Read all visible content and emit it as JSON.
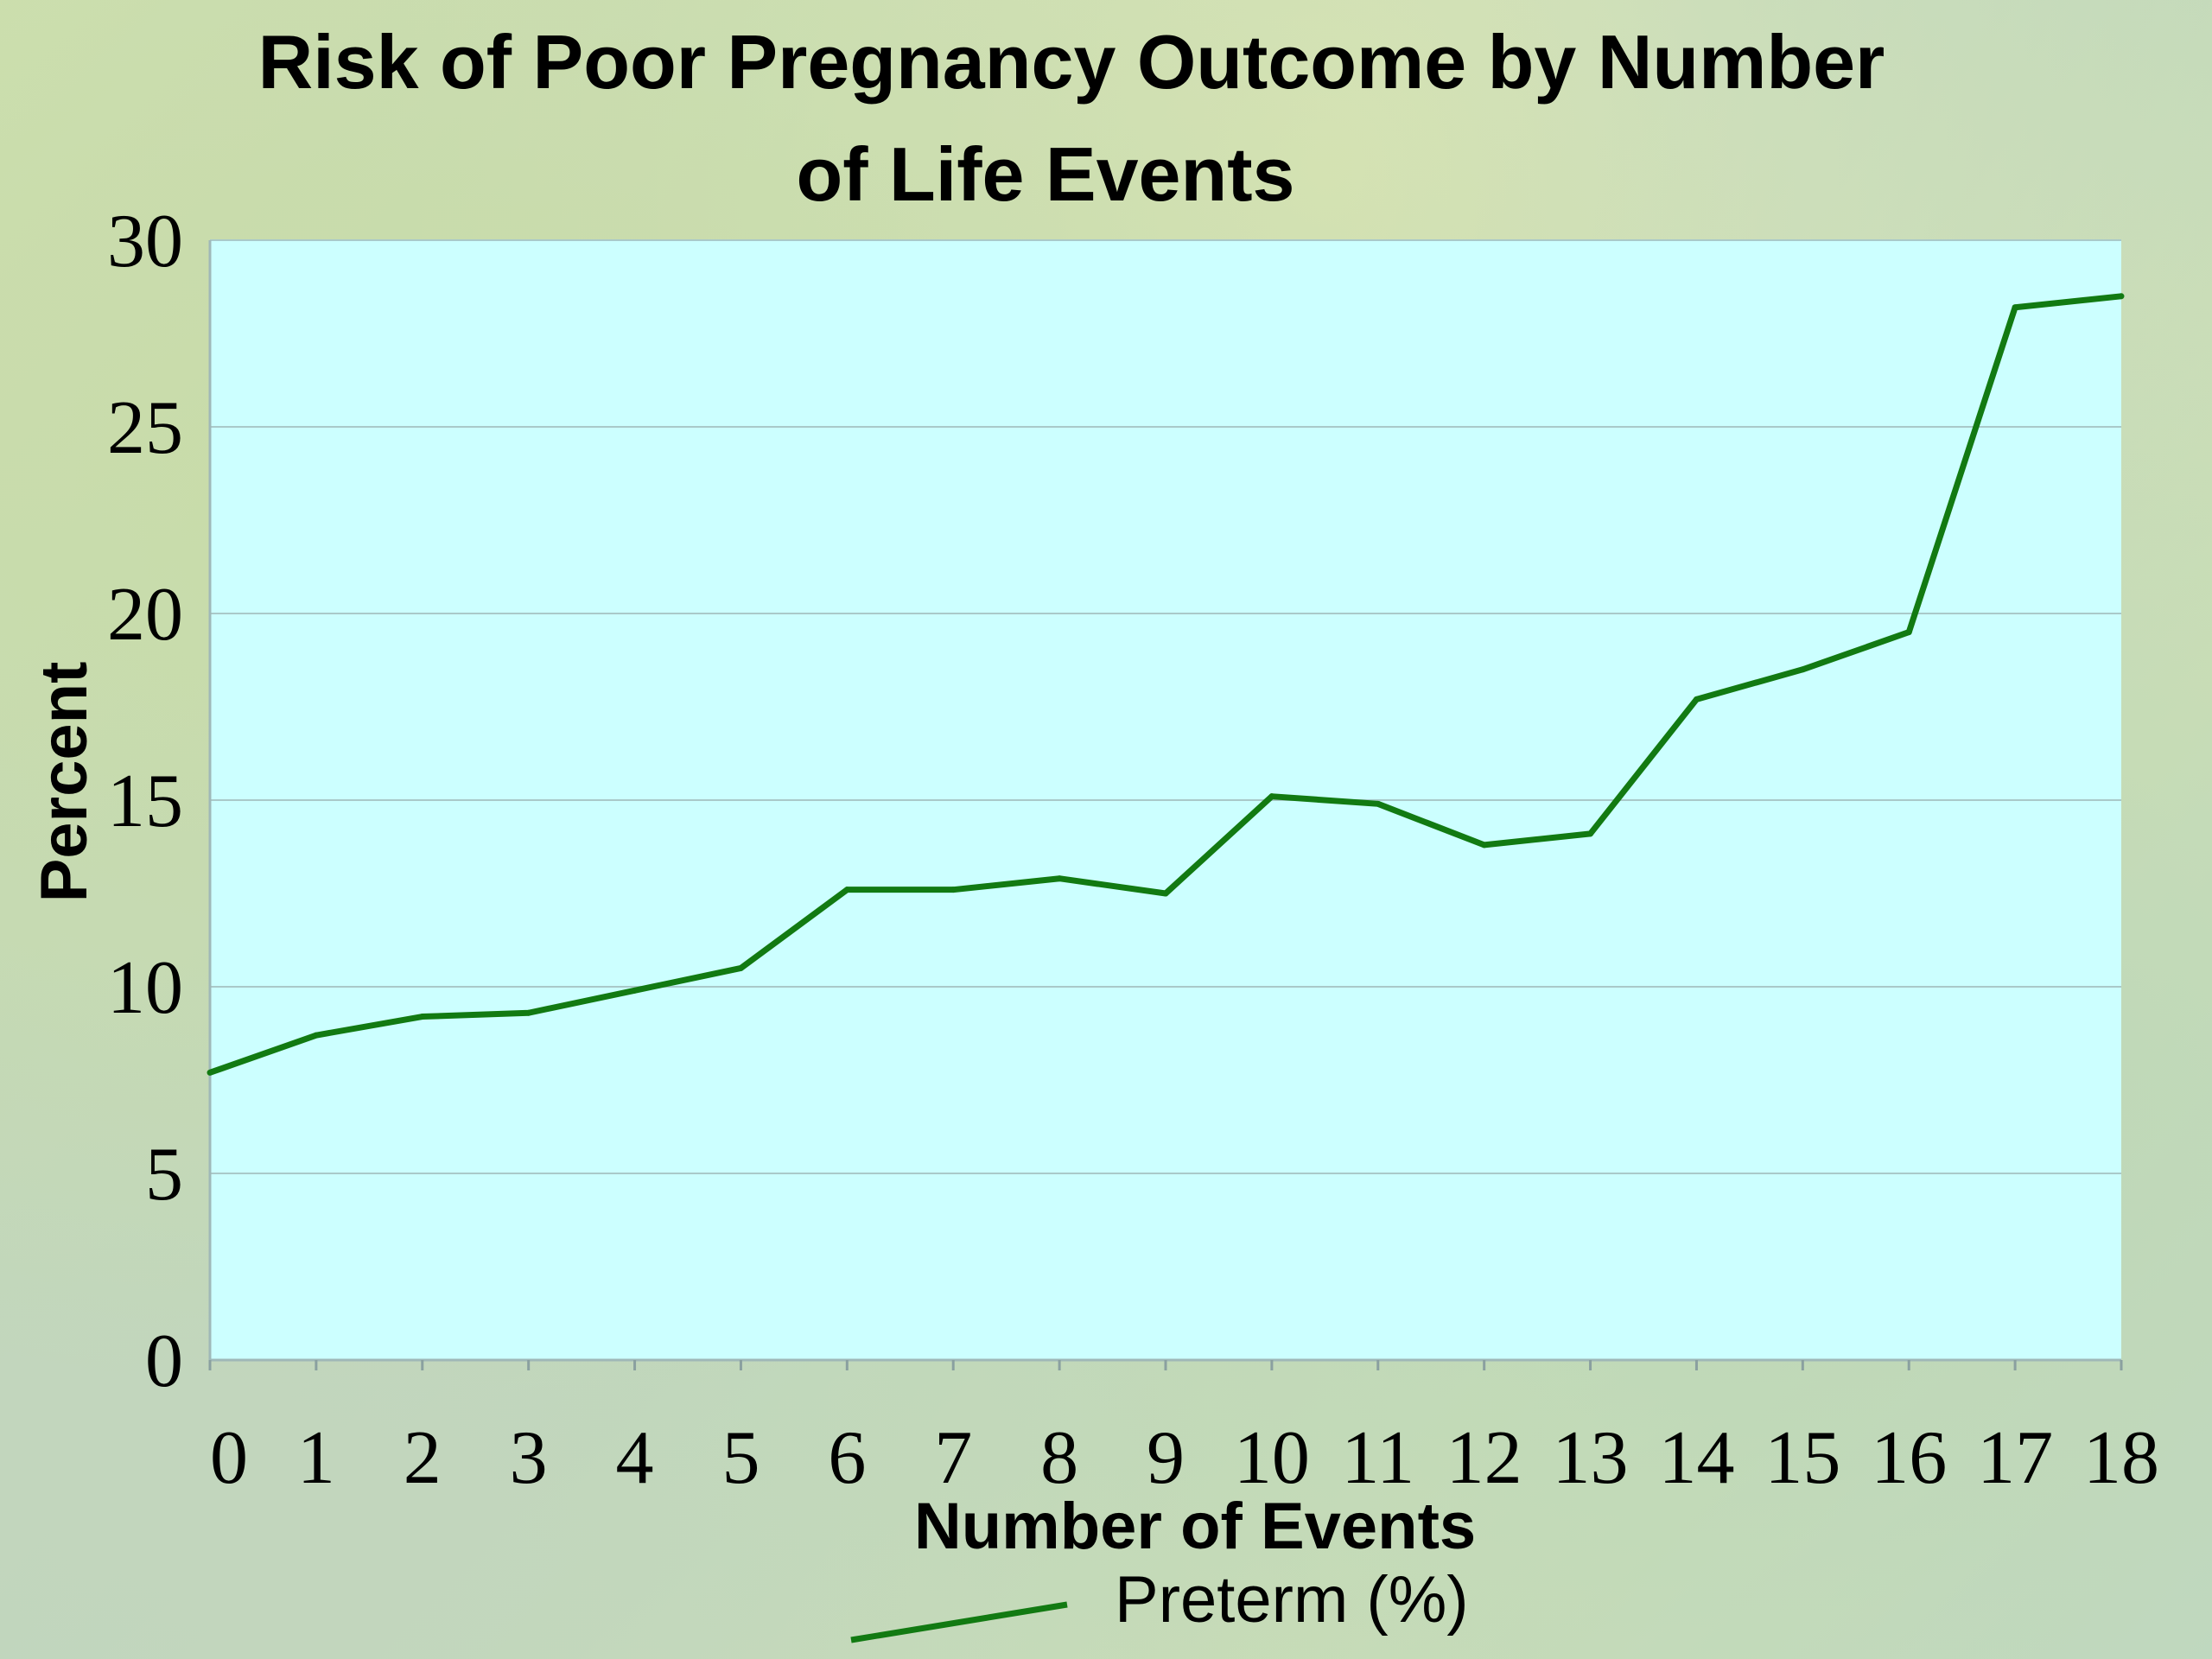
{
  "chart_data": {
    "type": "line",
    "title_lines": [
      "Risk of Poor Pregnancy Outcome by Number",
      "of Life Events"
    ],
    "xlabel": "Number of Events",
    "ylabel": "Percent",
    "x": [
      0,
      1,
      2,
      3,
      4,
      5,
      6,
      7,
      8,
      9,
      10,
      11,
      12,
      13,
      14,
      15,
      16,
      17,
      18
    ],
    "x_tick_labels": [
      "0",
      "1",
      "2",
      "3",
      "4",
      "5",
      "6",
      "7",
      "8",
      "9",
      "10",
      "11",
      "12",
      "13",
      "14",
      "15",
      "16",
      "17",
      "18"
    ],
    "y_ticks": [
      0,
      5,
      10,
      15,
      20,
      25,
      30
    ],
    "y_tick_labels": [
      "0",
      "5",
      "10",
      "15",
      "20",
      "25",
      "30"
    ],
    "ylim": [
      0,
      30
    ],
    "grid": "horizontal",
    "legend_position": "bottom",
    "series": [
      {
        "name": "Preterm (%)",
        "color": "#127a12",
        "values": [
          7.7,
          8.7,
          9.2,
          9.3,
          9.9,
          10.5,
          12.6,
          12.6,
          12.9,
          12.5,
          15.1,
          14.9,
          13.8,
          14.1,
          17.7,
          18.5,
          19.5,
          28.2,
          28.5
        ]
      }
    ],
    "plot_background": "#ccffff",
    "gridline_color": "#a9c9c9"
  }
}
